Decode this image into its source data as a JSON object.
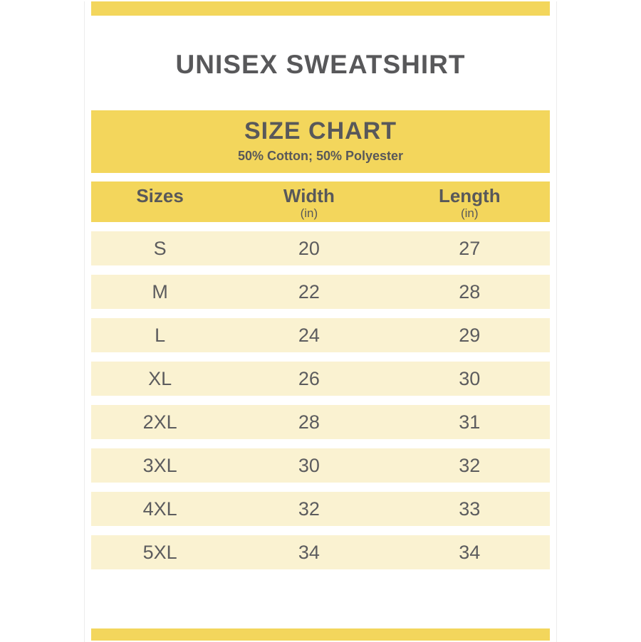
{
  "page": {
    "title": "UNISEX SWEATSHIRT"
  },
  "size_chart": {
    "title": "SIZE CHART",
    "subtitle": "50% Cotton; 50% Polyester"
  },
  "table": {
    "columns": [
      {
        "label": "Sizes",
        "unit": ""
      },
      {
        "label": "Width",
        "unit": "(in)"
      },
      {
        "label": "Length",
        "unit": "(in)"
      }
    ],
    "rows": [
      {
        "size": "S",
        "width": "20",
        "length": "27"
      },
      {
        "size": "M",
        "width": "22",
        "length": "28"
      },
      {
        "size": "L",
        "width": "24",
        "length": "29"
      },
      {
        "size": "XL",
        "width": "26",
        "length": "30"
      },
      {
        "size": "2XL",
        "width": "28",
        "length": "31"
      },
      {
        "size": "3XL",
        "width": "30",
        "length": "32"
      },
      {
        "size": "4XL",
        "width": "32",
        "length": "33"
      },
      {
        "size": "5XL",
        "width": "34",
        "length": "34"
      }
    ]
  },
  "colors": {
    "accent_yellow": "#F3D65C",
    "row_cream": "#FAF2D1",
    "heading_text": "#58585A",
    "body_text": "#5C5C5E"
  },
  "chart_data": {
    "type": "table",
    "title": "SIZE CHART",
    "subtitle": "50% Cotton; 50% Polyester",
    "product": "UNISEX SWEATSHIRT",
    "columns": [
      "Sizes",
      "Width (in)",
      "Length (in)"
    ],
    "rows": [
      [
        "S",
        20,
        27
      ],
      [
        "M",
        22,
        28
      ],
      [
        "L",
        24,
        29
      ],
      [
        "XL",
        26,
        30
      ],
      [
        "2XL",
        28,
        31
      ],
      [
        "3XL",
        30,
        32
      ],
      [
        "4XL",
        32,
        33
      ],
      [
        "5XL",
        34,
        34
      ]
    ]
  }
}
